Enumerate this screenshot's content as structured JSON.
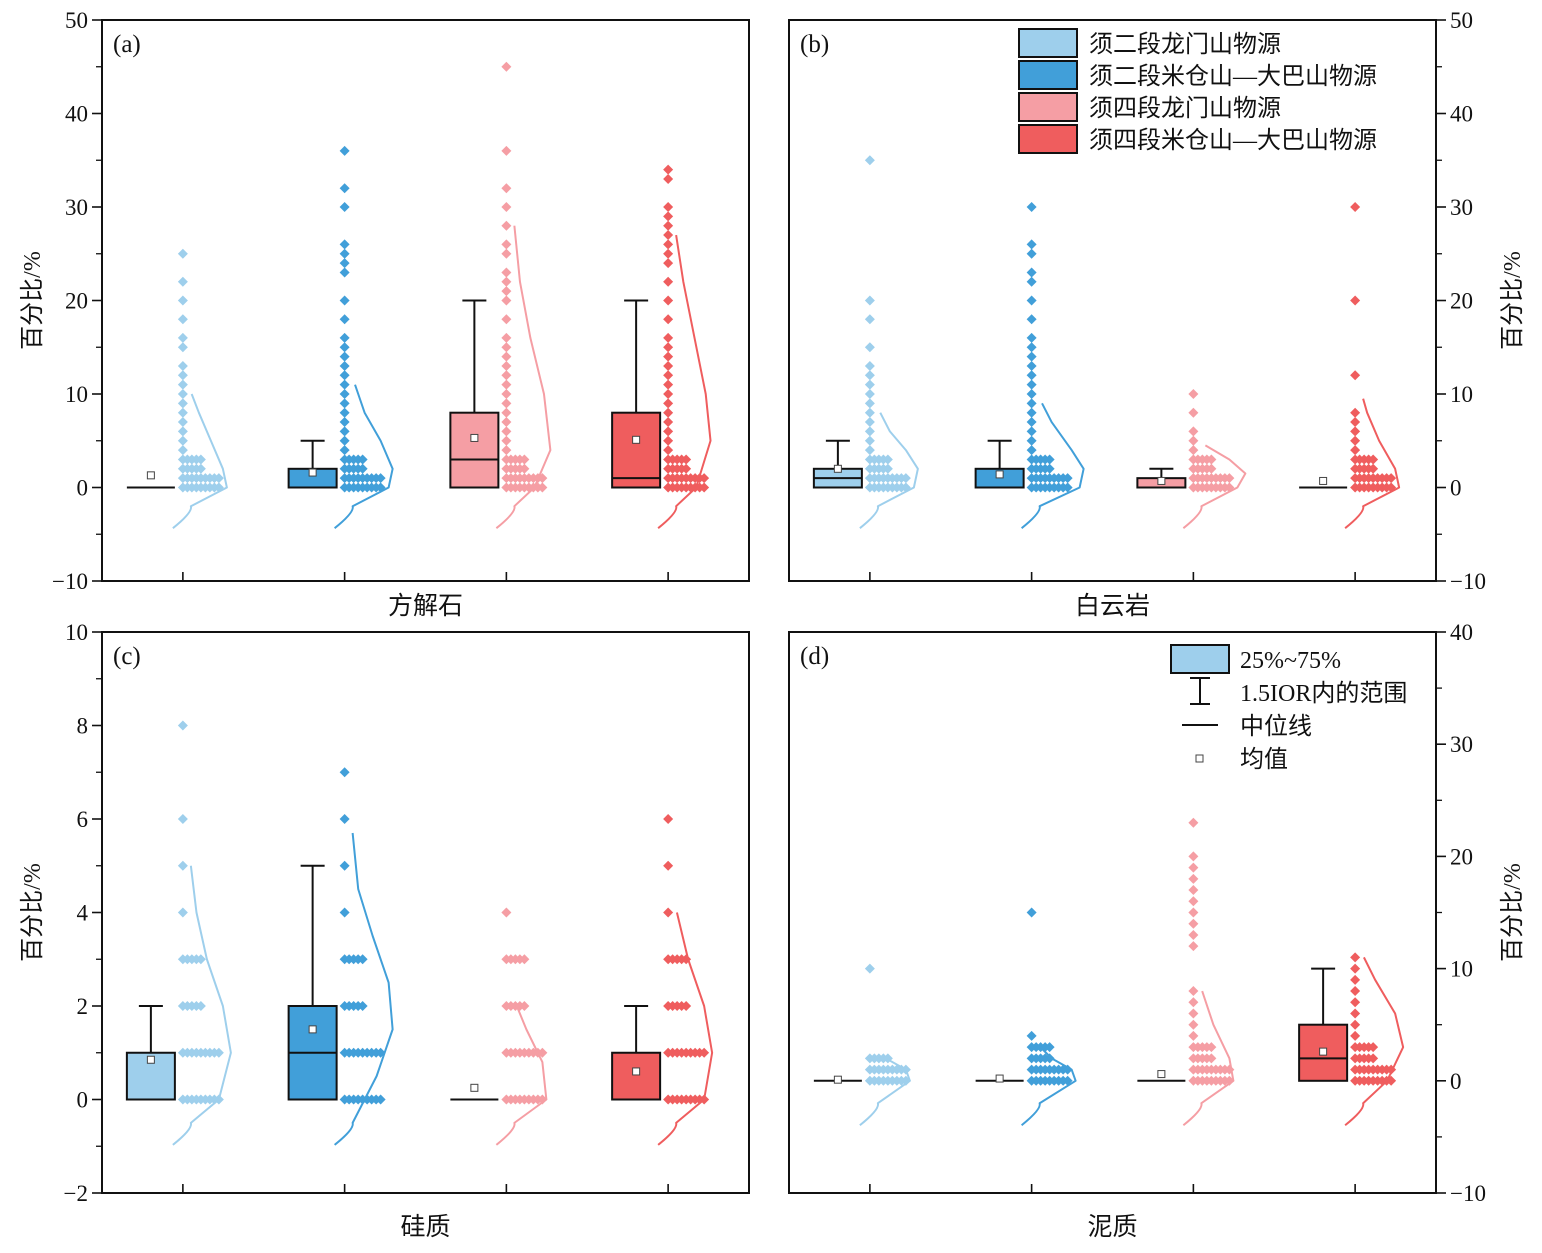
{
  "figure": {
    "ylabel": "百分比/%",
    "series_colors": [
      "#9ecfec",
      "#419fd9",
      "#f59ea4",
      "#ef5d5e"
    ]
  },
  "legend_sources": [
    {
      "label": "须二段龙门山物源",
      "color": "#9ecfec"
    },
    {
      "label": "须二段米仓山—大巴山物源",
      "color": "#419fd9"
    },
    {
      "label": "须四段龙门山物源",
      "color": "#f59ea4"
    },
    {
      "label": "须四段米仓山—大巴山物源",
      "color": "#ef5d5e"
    }
  ],
  "legend_stats": [
    {
      "label": "25%~75%",
      "kind": "box"
    },
    {
      "label": "1.5IOR内的范围",
      "kind": "whisker"
    },
    {
      "label": "中位线",
      "kind": "median"
    },
    {
      "label": "均值",
      "kind": "mean"
    }
  ],
  "chart_data": [
    {
      "type": "box",
      "panel": "(a)",
      "xlabel": "方解石",
      "ylabel": "百分比/%",
      "ylim": [
        -10,
        50
      ],
      "yticks": [
        -10,
        0,
        10,
        20,
        30,
        40,
        50
      ],
      "yaxis_side": "left",
      "series": [
        {
          "name": "须二段龙门山物源",
          "q1": 0,
          "median": 0,
          "q3": 0,
          "whisker_low": 0,
          "whisker_high": 0,
          "mean": 1.3,
          "points": [
            25,
            22,
            20,
            18,
            16,
            15,
            13,
            12,
            11,
            10,
            9,
            8,
            7,
            6,
            5,
            4,
            3,
            2,
            1,
            0
          ],
          "density": [
            [
              -2,
              0.05
            ],
            [
              0,
              0.5
            ],
            [
              2,
              0.45
            ],
            [
              5,
              0.3
            ],
            [
              8,
              0.15
            ],
            [
              10,
              0.06
            ]
          ]
        },
        {
          "name": "须二段米仓山—大巴山物源",
          "q1": 0,
          "median": 0,
          "q3": 2,
          "whisker_low": 0,
          "whisker_high": 5,
          "mean": 1.6,
          "points": [
            36,
            32,
            30,
            26,
            25,
            24,
            23,
            20,
            18,
            16,
            15,
            14,
            13,
            12,
            11,
            10,
            9,
            8,
            7,
            6,
            5,
            4,
            3,
            2,
            1,
            0
          ],
          "density": [
            [
              -2,
              0.05
            ],
            [
              0,
              0.5
            ],
            [
              2,
              0.55
            ],
            [
              5,
              0.4
            ],
            [
              8,
              0.2
            ],
            [
              11,
              0.08
            ]
          ]
        },
        {
          "name": "须四段龙门山物源",
          "q1": 0,
          "median": 3,
          "q3": 8,
          "whisker_low": 0,
          "whisker_high": 20,
          "mean": 5.3,
          "points": [
            45,
            36,
            32,
            30,
            28,
            26,
            25,
            23,
            22,
            21,
            20,
            18,
            16,
            15,
            14,
            13,
            12,
            11,
            10,
            9,
            8,
            7,
            6,
            5,
            4,
            3,
            2,
            1,
            0
          ],
          "density": [
            [
              -2,
              0.05
            ],
            [
              0,
              0.3
            ],
            [
              4,
              0.5
            ],
            [
              10,
              0.42
            ],
            [
              16,
              0.25
            ],
            [
              22,
              0.12
            ],
            [
              28,
              0.05
            ]
          ]
        },
        {
          "name": "须四段米仓山—大巴山物源",
          "q1": 0,
          "median": 1,
          "q3": 8,
          "whisker_low": 0,
          "whisker_high": 20,
          "mean": 5.1,
          "points": [
            34,
            33,
            30,
            29,
            28,
            27,
            26,
            25,
            24,
            22,
            20,
            18,
            16,
            15,
            14,
            13,
            12,
            11,
            10,
            9,
            8,
            7,
            6,
            5,
            4,
            3,
            2,
            1,
            0
          ],
          "density": [
            [
              -2,
              0.05
            ],
            [
              0,
              0.3
            ],
            [
              5,
              0.48
            ],
            [
              10,
              0.42
            ],
            [
              16,
              0.28
            ],
            [
              22,
              0.14
            ],
            [
              27,
              0.05
            ]
          ]
        }
      ]
    },
    {
      "type": "box",
      "panel": "(b)",
      "xlabel": "白云岩",
      "ylabel": "百分比/%",
      "ylim": [
        -10,
        50
      ],
      "yticks": [
        -10,
        0,
        10,
        20,
        30,
        40,
        50
      ],
      "yaxis_side": "right",
      "series": [
        {
          "name": "须二段龙门山物源",
          "q1": 0,
          "median": 1,
          "q3": 2,
          "whisker_low": 0,
          "whisker_high": 5,
          "mean": 2.0,
          "points": [
            35,
            20,
            18,
            15,
            13,
            12,
            11,
            10,
            9,
            8,
            7,
            6,
            5,
            4,
            3,
            2,
            1,
            0
          ],
          "density": [
            [
              -2,
              0.05
            ],
            [
              0,
              0.5
            ],
            [
              2,
              0.55
            ],
            [
              4,
              0.4
            ],
            [
              6,
              0.2
            ],
            [
              8,
              0.08
            ]
          ]
        },
        {
          "name": "须二段米仓山—大巴山物源",
          "q1": 0,
          "median": 0,
          "q3": 2,
          "whisker_low": 0,
          "whisker_high": 5,
          "mean": 1.4,
          "points": [
            30,
            26,
            25,
            23,
            22,
            20,
            18,
            16,
            15,
            14,
            13,
            12,
            11,
            10,
            9,
            8,
            7,
            6,
            5,
            4,
            3,
            2,
            1,
            0
          ],
          "density": [
            [
              -2,
              0.05
            ],
            [
              0,
              0.55
            ],
            [
              2,
              0.6
            ],
            [
              4,
              0.45
            ],
            [
              7,
              0.2
            ],
            [
              9,
              0.08
            ]
          ]
        },
        {
          "name": "须四段龙门山物源",
          "q1": 0,
          "median": 0,
          "q3": 1,
          "whisker_low": 0,
          "whisker_high": 2,
          "mean": 0.7,
          "points": [
            10,
            8,
            6,
            5,
            4,
            3,
            2,
            1,
            0
          ],
          "density": [
            [
              -2,
              0.05
            ],
            [
              0,
              0.5
            ],
            [
              1.5,
              0.6
            ],
            [
              3,
              0.4
            ],
            [
              4.5,
              0.1
            ]
          ]
        },
        {
          "name": "须四段米仓山—大巴山物源",
          "q1": 0,
          "median": 0,
          "q3": 0,
          "whisker_low": 0,
          "whisker_high": 0,
          "mean": 0.7,
          "points": [
            30,
            20,
            12,
            8,
            7,
            6,
            5,
            4,
            3,
            2,
            1,
            0
          ],
          "density": [
            [
              -2,
              0.05
            ],
            [
              0,
              0.5
            ],
            [
              2,
              0.45
            ],
            [
              5,
              0.25
            ],
            [
              8,
              0.1
            ],
            [
              9.5,
              0.05
            ]
          ]
        }
      ]
    },
    {
      "type": "box",
      "panel": "(c)",
      "xlabel": "硅质",
      "ylabel": "百分比/%",
      "ylim": [
        -2,
        10
      ],
      "yticks": [
        -2,
        0,
        2,
        4,
        6,
        8,
        10
      ],
      "yaxis_side": "left",
      "series": [
        {
          "name": "须二段龙门山物源",
          "q1": 0,
          "median": 0,
          "q3": 1,
          "whisker_low": 0,
          "whisker_high": 2,
          "mean": 0.85,
          "points": [
            8,
            6,
            5,
            4,
            3,
            2,
            1,
            0
          ],
          "density": [
            [
              -0.5,
              0.05
            ],
            [
              0,
              0.4
            ],
            [
              1,
              0.55
            ],
            [
              2,
              0.45
            ],
            [
              3,
              0.25
            ],
            [
              4,
              0.12
            ],
            [
              5,
              0.05
            ]
          ]
        },
        {
          "name": "须二段米仓山—大巴山物源",
          "q1": 0,
          "median": 1,
          "q3": 2,
          "whisker_low": 0,
          "whisker_high": 5,
          "mean": 1.5,
          "points": [
            7,
            6,
            5,
            4,
            3,
            2,
            1,
            0
          ],
          "density": [
            [
              -0.5,
              0.05
            ],
            [
              0.5,
              0.35
            ],
            [
              1.5,
              0.55
            ],
            [
              2.5,
              0.5
            ],
            [
              3.5,
              0.3
            ],
            [
              4.5,
              0.12
            ],
            [
              5.7,
              0.05
            ]
          ]
        },
        {
          "name": "须四段龙门山物源",
          "q1": 0,
          "median": 0,
          "q3": 0,
          "whisker_low": 0,
          "whisker_high": 0,
          "mean": 0.25,
          "points": [
            4,
            3,
            2,
            1,
            0
          ],
          "density": [
            [
              -0.5,
              0.05
            ],
            [
              0,
              0.45
            ],
            [
              0.8,
              0.4
            ],
            [
              1.5,
              0.2
            ],
            [
              2,
              0.08
            ]
          ]
        },
        {
          "name": "须四段米仓山—大巴山物源",
          "q1": 0,
          "median": 0,
          "q3": 1,
          "whisker_low": 0,
          "whisker_high": 2,
          "mean": 0.6,
          "points": [
            6,
            5,
            4,
            3,
            2,
            1,
            0
          ],
          "density": [
            [
              -0.5,
              0.05
            ],
            [
              0,
              0.4
            ],
            [
              1,
              0.5
            ],
            [
              2,
              0.4
            ],
            [
              3,
              0.2
            ],
            [
              4,
              0.06
            ]
          ]
        }
      ]
    },
    {
      "type": "box",
      "panel": "(d)",
      "xlabel": "泥质",
      "ylabel": "百分比/%",
      "ylim": [
        -10,
        40
      ],
      "yticks": [
        -10,
        0,
        10,
        20,
        30,
        40
      ],
      "yaxis_side": "right",
      "series": [
        {
          "name": "须二段龙门山物源",
          "q1": 0,
          "median": 0,
          "q3": 0,
          "whisker_low": 0,
          "whisker_high": 0,
          "mean": 0.1,
          "points": [
            10,
            2,
            1,
            0
          ],
          "density": [
            [
              -2,
              0.05
            ],
            [
              0,
              0.45
            ],
            [
              1,
              0.4
            ],
            [
              2,
              0.15
            ]
          ]
        },
        {
          "name": "须二段米仓山—大巴山物源",
          "q1": 0,
          "median": 0,
          "q3": 0,
          "whisker_low": 0,
          "whisker_high": 0,
          "mean": 0.2,
          "points": [
            15,
            4,
            3,
            2,
            1,
            0
          ],
          "density": [
            [
              -2,
              0.05
            ],
            [
              0,
              0.5
            ],
            [
              1,
              0.45
            ],
            [
              2,
              0.2
            ],
            [
              3,
              0.06
            ]
          ]
        },
        {
          "name": "须四段龙门山物源",
          "q1": 0,
          "median": 0,
          "q3": 0,
          "whisker_low": 0,
          "whisker_high": 0,
          "mean": 0.6,
          "points": [
            23,
            20,
            19,
            18,
            17,
            16,
            15,
            14,
            13,
            12,
            8,
            7,
            6,
            5,
            4,
            3,
            2,
            1,
            0
          ],
          "density": [
            [
              -2,
              0.05
            ],
            [
              0,
              0.45
            ],
            [
              2,
              0.4
            ],
            [
              5,
              0.2
            ],
            [
              8,
              0.06
            ]
          ]
        },
        {
          "name": "须四段米仓山—大巴山物源",
          "q1": 0,
          "median": 2,
          "q3": 5,
          "whisker_low": 0,
          "whisker_high": 10,
          "mean": 2.6,
          "points": [
            11,
            10,
            9,
            8,
            7,
            6,
            5,
            4,
            3,
            2,
            1,
            0
          ],
          "density": [
            [
              -2,
              0.05
            ],
            [
              0,
              0.35
            ],
            [
              3,
              0.55
            ],
            [
              6,
              0.45
            ],
            [
              9,
              0.2
            ],
            [
              11,
              0.06
            ]
          ]
        }
      ]
    }
  ]
}
